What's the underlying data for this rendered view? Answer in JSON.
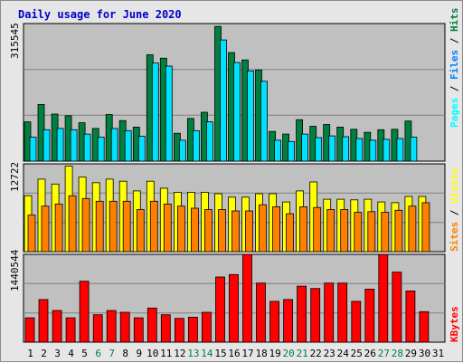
{
  "title": "Daily usage for June 2020",
  "colors": {
    "title": "#0000cc",
    "hits": "#008040",
    "files": "#00e0ff",
    "pages": "#00ffff",
    "visits": "#ffff00",
    "sites": "#ff8000",
    "kbytes": "#ff0000",
    "weekend_label": "#008040",
    "plot_bg": "#c0c0c0"
  },
  "chart_data": [
    {
      "type": "bar",
      "name": "hits-files-pages",
      "categories": [
        "1",
        "2",
        "3",
        "4",
        "5",
        "6",
        "7",
        "8",
        "9",
        "10",
        "11",
        "12",
        "13",
        "14",
        "15",
        "16",
        "17",
        "18",
        "19",
        "20",
        "21",
        "22",
        "23",
        "24",
        "25",
        "26",
        "27",
        "28",
        "29",
        "30",
        "31"
      ],
      "ymax_label": "315545",
      "ylim": [
        0,
        315545
      ],
      "series": [
        {
          "name": "Hits",
          "values": [
            90000,
            130000,
            108000,
            104000,
            88000,
            75000,
            107000,
            93000,
            78000,
            244000,
            236000,
            64000,
            98000,
            112000,
            309000,
            249000,
            232000,
            209000,
            68000,
            62000,
            95000,
            80000,
            84000,
            78000,
            73000,
            66000,
            72000,
            73000,
            92000,
            0,
            0
          ]
        },
        {
          "name": "Files",
          "values": [
            55000,
            72000,
            75000,
            72000,
            62000,
            55000,
            75000,
            70000,
            57000,
            225000,
            218000,
            48000,
            70000,
            90000,
            278000,
            226000,
            207000,
            183000,
            48000,
            45000,
            62000,
            54000,
            58000,
            56000,
            52000,
            48000,
            50000,
            52000,
            55000,
            0,
            0
          ]
        },
        {
          "name": "Pages",
          "values": [
            2000,
            2000,
            2000,
            2000,
            2000,
            2000,
            2000,
            2000,
            2000,
            3000,
            3000,
            1500,
            2000,
            2000,
            3000,
            3000,
            3000,
            3000,
            1500,
            1500,
            2000,
            2000,
            2000,
            2000,
            2000,
            1500,
            1500,
            1500,
            2000,
            0,
            0
          ]
        }
      ],
      "legend": [
        "Pages",
        "Files",
        "Hits"
      ]
    },
    {
      "type": "bar",
      "name": "visits-sites",
      "categories": [
        "1",
        "2",
        "3",
        "4",
        "5",
        "6",
        "7",
        "8",
        "9",
        "10",
        "11",
        "12",
        "13",
        "14",
        "15",
        "16",
        "17",
        "18",
        "19",
        "20",
        "21",
        "22",
        "23",
        "24",
        "25",
        "26",
        "27",
        "28",
        "29",
        "30",
        "31"
      ],
      "ymax_label": "12722",
      "ylim": [
        0,
        12722
      ],
      "series": [
        {
          "name": "Visits",
          "values": [
            8100,
            10500,
            9800,
            12400,
            10800,
            10000,
            10500,
            10200,
            8800,
            10200,
            9200,
            8600,
            8600,
            8600,
            8400,
            7900,
            7900,
            8400,
            8400,
            7200,
            8800,
            10100,
            7600,
            7600,
            7500,
            7600,
            7200,
            7100,
            8000,
            8000,
            0
          ]
        },
        {
          "name": "Sites",
          "values": [
            5300,
            6600,
            6900,
            8100,
            7700,
            7300,
            7300,
            7300,
            6100,
            7300,
            6900,
            6600,
            6300,
            6100,
            6100,
            5900,
            5900,
            6800,
            6500,
            5500,
            6500,
            6400,
            6100,
            6100,
            5700,
            5800,
            5700,
            6000,
            6600,
            7100,
            0
          ]
        }
      ],
      "legend": [
        "Sites",
        "Visits"
      ]
    },
    {
      "type": "bar",
      "name": "kbytes",
      "categories": [
        "1",
        "2",
        "3",
        "4",
        "5",
        "6",
        "7",
        "8",
        "9",
        "10",
        "11",
        "12",
        "13",
        "14",
        "15",
        "16",
        "17",
        "18",
        "19",
        "20",
        "21",
        "22",
        "23",
        "24",
        "25",
        "26",
        "27",
        "28",
        "29",
        "30",
        "31"
      ],
      "ymax_label": "1440544",
      "ylim": [
        0,
        1440544
      ],
      "series": [
        {
          "name": "KBytes",
          "values": [
            400000,
            700000,
            520000,
            400000,
            1000000,
            450000,
            520000,
            490000,
            400000,
            560000,
            450000,
            390000,
            410000,
            490000,
            1070000,
            1110000,
            1440000,
            970000,
            670000,
            700000,
            920000,
            880000,
            970000,
            970000,
            670000,
            870000,
            1440000,
            1150000,
            840000,
            500000,
            0
          ]
        }
      ],
      "legend": [
        "KBytes"
      ]
    }
  ],
  "legend_right": {
    "hits_files_pages": [
      "Pages",
      "Files",
      "Hits"
    ],
    "visits_sites": [
      "Sites",
      "Visits"
    ],
    "kbytes": [
      "KBytes"
    ],
    "separator": " / "
  },
  "weekend_days": [
    "6",
    "7",
    "13",
    "14",
    "20",
    "21",
    "27",
    "28"
  ]
}
